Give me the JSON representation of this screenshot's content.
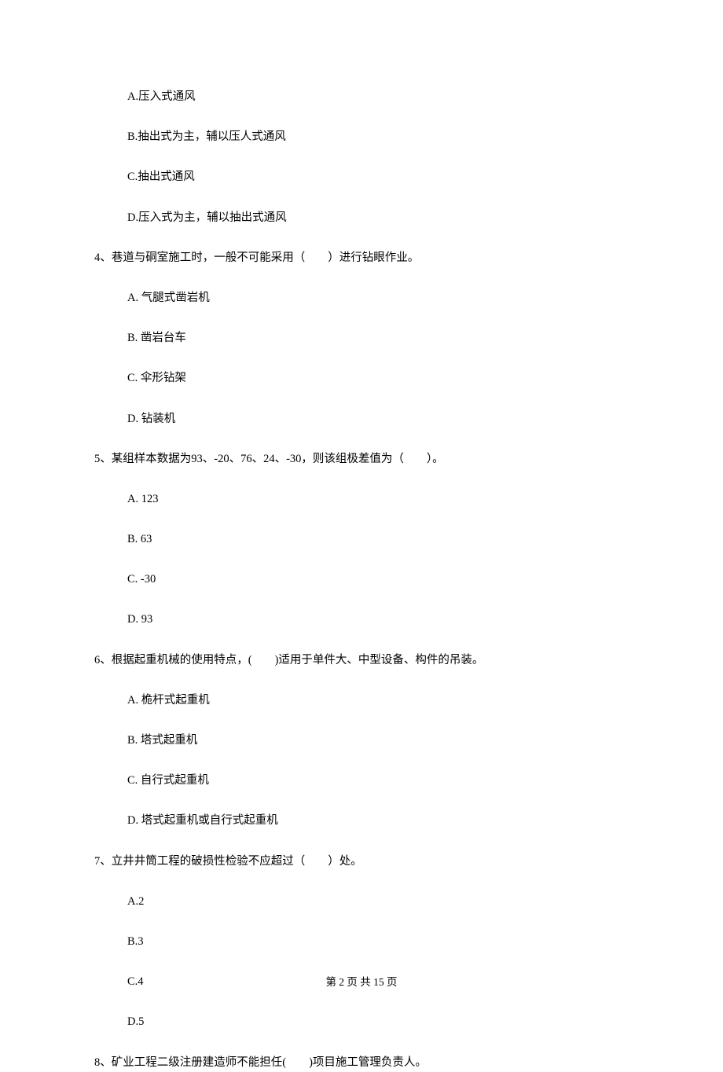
{
  "q3_options": {
    "a": "A.压入式通风",
    "b": "B.抽出式为主，辅以压人式通风",
    "c": "C.抽出式通风",
    "d": "D.压入式为主，辅以抽出式通风"
  },
  "q4": {
    "stem": "4、巷道与硐室施工时，一般不可能采用（　　）进行钻眼作业。",
    "a": "A.  气腿式凿岩机",
    "b": "B.  凿岩台车",
    "c": "C.  伞形钻架",
    "d": "D.  钻装机"
  },
  "q5": {
    "stem": "5、某组样本数据为93、-20、76、24、-30，则该组极差值为（　　）。",
    "a": "A.  123",
    "b": "B.  63",
    "c": "C.  -30",
    "d": "D.  93"
  },
  "q6": {
    "stem": "6、根据起重机械的使用特点，(　　)适用于单件大、中型设备、构件的吊装。",
    "a": "A.  桅杆式起重机",
    "b": "B.  塔式起重机",
    "c": "C.  自行式起重机",
    "d": "D.  塔式起重机或自行式起重机"
  },
  "q7": {
    "stem": "7、立井井筒工程的破损性检验不应超过（　　）处。",
    "a": "A.2",
    "b": "B.3",
    "c": "C.4",
    "d": "D.5"
  },
  "q8": {
    "stem": "8、矿业工程二级注册建造师不能担任(　　)项目施工管理负责人。"
  },
  "footer": "第 2 页 共 15 页"
}
